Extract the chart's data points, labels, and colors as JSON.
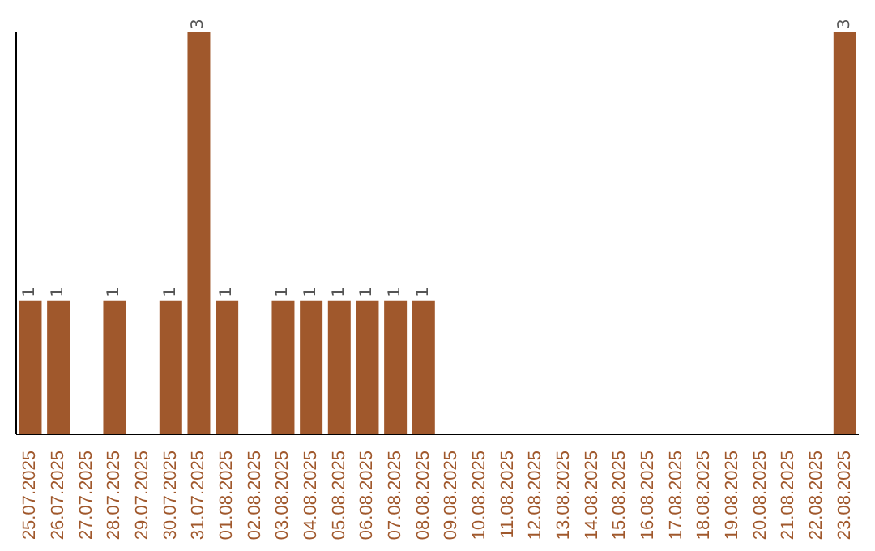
{
  "chart_data": {
    "type": "bar",
    "categories": [
      "25.07.2025",
      "26.07.2025",
      "27.07.2025",
      "28.07.2025",
      "29.07.2025",
      "30.07.2025",
      "31.07.2025",
      "01.08.2025",
      "02.08.2025",
      "03.08.2025",
      "04.08.2025",
      "05.08.2025",
      "06.08.2025",
      "07.08.2025",
      "08.08.2025",
      "09.08.2025",
      "10.08.2025",
      "11.08.2025",
      "12.08.2025",
      "13.08.2025",
      "14.08.2025",
      "15.08.2025",
      "16.08.2025",
      "17.08.2025",
      "18.08.2025",
      "19.08.2025",
      "20.08.2025",
      "21.08.2025",
      "22.08.2025",
      "23.08.2025"
    ],
    "values": [
      1,
      1,
      0,
      1,
      0,
      1,
      3,
      1,
      0,
      1,
      1,
      1,
      1,
      1,
      1,
      0,
      0,
      0,
      0,
      0,
      0,
      0,
      0,
      0,
      0,
      0,
      0,
      0,
      0,
      3
    ],
    "value_labels": [
      "1",
      "1",
      null,
      "1",
      null,
      "1",
      "3",
      "1",
      null,
      "1",
      "1",
      "1",
      "1",
      "1",
      "1",
      null,
      null,
      null,
      null,
      null,
      null,
      null,
      null,
      null,
      null,
      null,
      null,
      null,
      null,
      "3"
    ],
    "color": "#a0582c",
    "grid": false,
    "legend": false
  }
}
